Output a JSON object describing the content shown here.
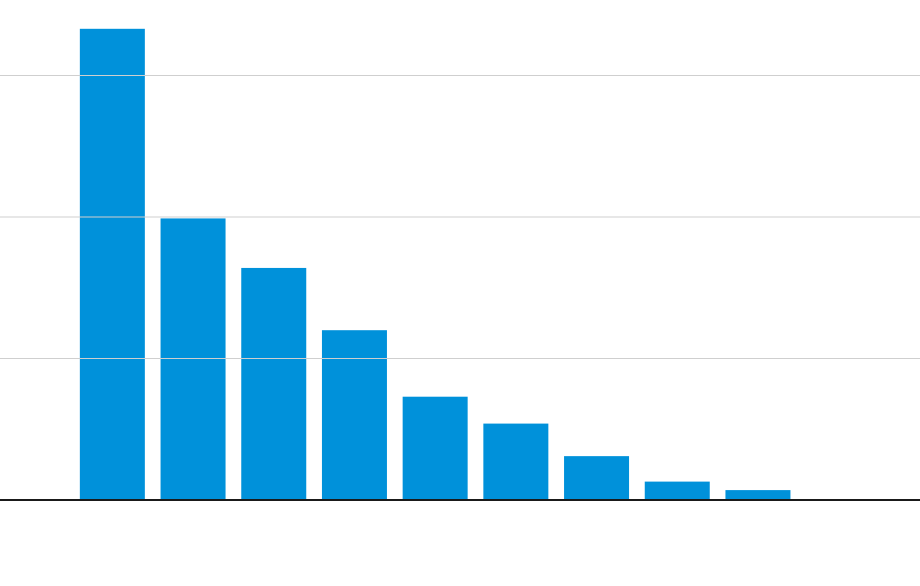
{
  "chart_data": {
    "type": "bar",
    "values": [
      3.33,
      1.99,
      1.64,
      1.2,
      0.73,
      0.54,
      0.31,
      0.13,
      0.07
    ],
    "color": "#0091da",
    "ylim": [
      0,
      3.5
    ],
    "yticks": [
      0,
      1,
      2,
      3
    ],
    "grid": true
  }
}
